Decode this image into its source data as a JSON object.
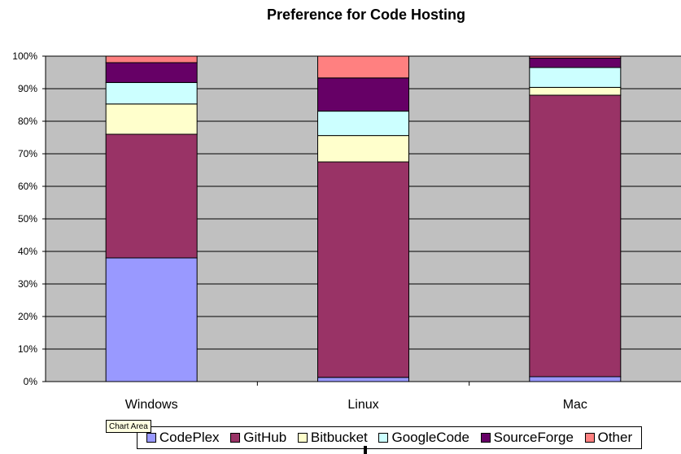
{
  "chart_data": {
    "type": "bar",
    "stacked": true,
    "percent": true,
    "title": "Preference for Code Hosting",
    "categories": [
      "Windows",
      "Linux",
      "Mac"
    ],
    "y_ticks": [
      "0%",
      "10%",
      "20%",
      "30%",
      "40%",
      "50%",
      "60%",
      "70%",
      "80%",
      "90%",
      "100%"
    ],
    "ylim": [
      0,
      100
    ],
    "grid": true,
    "legend_position": "bottom",
    "series": [
      {
        "name": "CodePlex",
        "color": "#9999ff",
        "values": [
          38.0,
          1.3,
          1.5
        ]
      },
      {
        "name": "GitHub",
        "color": "#993366",
        "values": [
          38.0,
          66.2,
          86.5
        ]
      },
      {
        "name": "Bitbucket",
        "color": "#ffffcc",
        "values": [
          9.3,
          8.1,
          2.4
        ]
      },
      {
        "name": "GoogleCode",
        "color": "#ccffff",
        "values": [
          6.6,
          7.5,
          6.1
        ]
      },
      {
        "name": "SourceForge",
        "color": "#660066",
        "values": [
          6.1,
          10.2,
          2.9
        ]
      },
      {
        "name": "Other",
        "color": "#ff8080",
        "values": [
          2.0,
          6.7,
          0.6
        ]
      }
    ]
  },
  "tooltip": {
    "text": "Chart Area"
  }
}
